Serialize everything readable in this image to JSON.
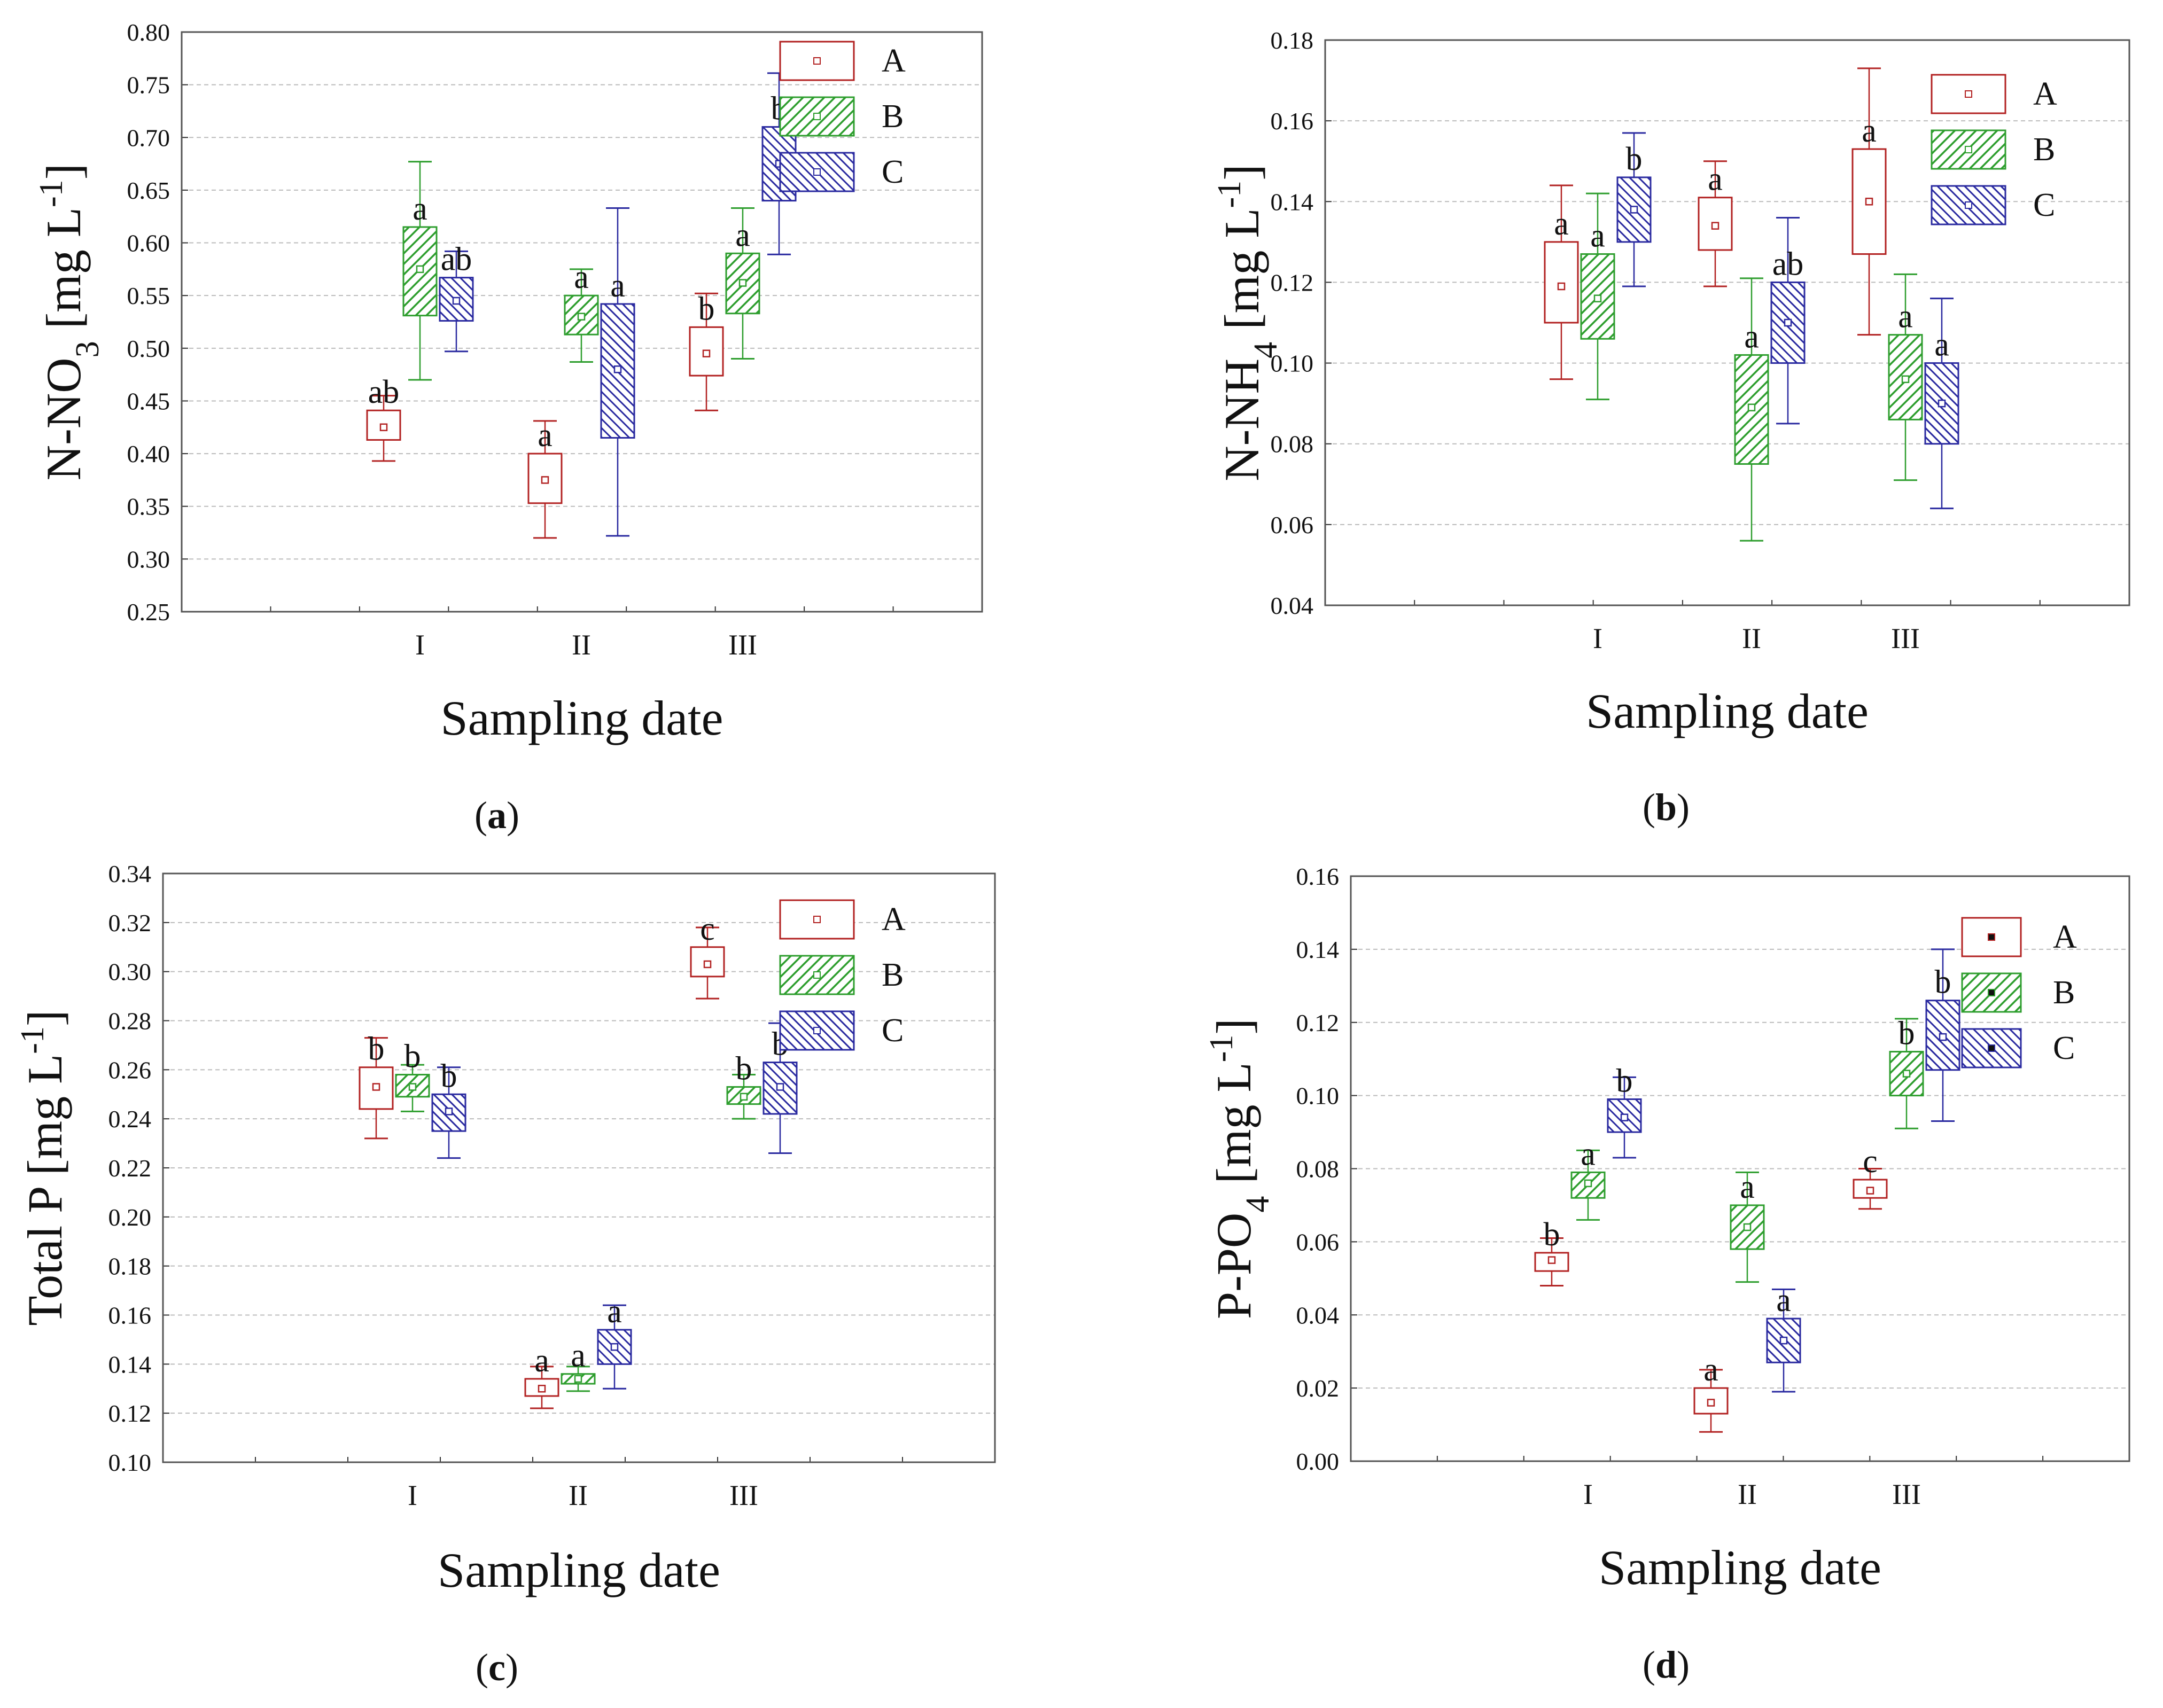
{
  "colors": {
    "A": "#b22222",
    "B": "#2e9e2e",
    "C": "#2a2aa0",
    "grid": "#bbbbbb",
    "frame": "#555555"
  },
  "series_names": [
    "A",
    "B",
    "C"
  ],
  "chart_data": [
    {
      "type": "box",
      "panel": "a",
      "title": "",
      "xlabel": "Sampling date",
      "ylabel_main": "N-NO",
      "ylabel_sub": "3",
      "ylabel_unit": " [mg L",
      "ylabel_exp": "-1",
      "ylabel_close": "]",
      "yticks": [
        "0.25",
        "0.30",
        "0.35",
        "0.40",
        "0.45",
        "0.50",
        "0.55",
        "0.60",
        "0.65",
        "0.70",
        "0.75",
        "0.80"
      ],
      "ylim": [
        0.25,
        0.8
      ],
      "categories": [
        "I",
        "II",
        "III"
      ],
      "legend": [
        "A",
        "B",
        "C"
      ],
      "legend_position": "top-right",
      "series": [
        {
          "name": "A",
          "boxes": [
            {
              "cat": "I",
              "min": 0.393,
              "q1": 0.413,
              "median": 0.425,
              "q3": 0.441,
              "max": 0.455,
              "label": "ab"
            },
            {
              "cat": "II",
              "min": 0.32,
              "q1": 0.353,
              "median": 0.375,
              "q3": 0.4,
              "max": 0.431,
              "label": "a"
            },
            {
              "cat": "III",
              "min": 0.441,
              "q1": 0.474,
              "median": 0.495,
              "q3": 0.52,
              "max": 0.552,
              "label": "b"
            }
          ]
        },
        {
          "name": "B",
          "boxes": [
            {
              "cat": "I",
              "min": 0.47,
              "q1": 0.531,
              "median": 0.575,
              "q3": 0.615,
              "max": 0.677,
              "label": "a"
            },
            {
              "cat": "II",
              "min": 0.487,
              "q1": 0.513,
              "median": 0.53,
              "q3": 0.55,
              "max": 0.575,
              "label": "a"
            },
            {
              "cat": "III",
              "min": 0.49,
              "q1": 0.533,
              "median": 0.562,
              "q3": 0.59,
              "max": 0.633,
              "label": "a"
            }
          ]
        },
        {
          "name": "C",
          "boxes": [
            {
              "cat": "I",
              "min": 0.497,
              "q1": 0.526,
              "median": 0.545,
              "q3": 0.567,
              "max": 0.592,
              "label": "ab"
            },
            {
              "cat": "II",
              "min": 0.322,
              "q1": 0.415,
              "median": 0.48,
              "q3": 0.542,
              "max": 0.633,
              "label": "a"
            },
            {
              "cat": "III",
              "min": 0.589,
              "q1": 0.64,
              "median": 0.675,
              "q3": 0.71,
              "max": 0.761,
              "label": "b"
            }
          ]
        }
      ],
      "panel_label": "a"
    },
    {
      "type": "box",
      "panel": "b",
      "title": "",
      "xlabel": "Sampling date",
      "ylabel_main": "N-NH",
      "ylabel_sub": "4",
      "ylabel_unit": " [mg L",
      "ylabel_exp": "-1",
      "ylabel_close": "]",
      "yticks": [
        "0.04",
        "0.06",
        "0.08",
        "0.10",
        "0.12",
        "0.14",
        "0.16",
        "0.18"
      ],
      "ylim": [
        0.04,
        0.18
      ],
      "categories": [
        "I",
        "II",
        "III"
      ],
      "legend": [
        "A",
        "B",
        "C"
      ],
      "legend_position": "top-right",
      "series": [
        {
          "name": "A",
          "boxes": [
            {
              "cat": "I",
              "min": 0.096,
              "q1": 0.11,
              "median": 0.119,
              "q3": 0.13,
              "max": 0.144,
              "label": "a"
            },
            {
              "cat": "II",
              "min": 0.119,
              "q1": 0.128,
              "median": 0.134,
              "q3": 0.141,
              "max": 0.15,
              "label": "a"
            },
            {
              "cat": "III",
              "min": 0.107,
              "q1": 0.127,
              "median": 0.14,
              "q3": 0.153,
              "max": 0.173,
              "label": "a"
            }
          ]
        },
        {
          "name": "B",
          "boxes": [
            {
              "cat": "I",
              "min": 0.091,
              "q1": 0.106,
              "median": 0.116,
              "q3": 0.127,
              "max": 0.142,
              "label": "a"
            },
            {
              "cat": "II",
              "min": 0.056,
              "q1": 0.075,
              "median": 0.089,
              "q3": 0.102,
              "max": 0.121,
              "label": "a"
            },
            {
              "cat": "III",
              "min": 0.071,
              "q1": 0.086,
              "median": 0.096,
              "q3": 0.107,
              "max": 0.122,
              "label": "a"
            }
          ]
        },
        {
          "name": "C",
          "boxes": [
            {
              "cat": "I",
              "min": 0.119,
              "q1": 0.13,
              "median": 0.138,
              "q3": 0.146,
              "max": 0.157,
              "label": "b"
            },
            {
              "cat": "II",
              "min": 0.085,
              "q1": 0.1,
              "median": 0.11,
              "q3": 0.12,
              "max": 0.136,
              "label": "ab"
            },
            {
              "cat": "III",
              "min": 0.064,
              "q1": 0.08,
              "median": 0.09,
              "q3": 0.1,
              "max": 0.116,
              "label": "a"
            }
          ]
        }
      ],
      "panel_label": "b"
    },
    {
      "type": "box",
      "panel": "c",
      "title": "",
      "xlabel": "Sampling date",
      "ylabel_main": "Total P",
      "ylabel_sub": "",
      "ylabel_unit": " [mg L",
      "ylabel_exp": "-1",
      "ylabel_close": "]",
      "yticks": [
        "0.10",
        "0.12",
        "0.14",
        "0.16",
        "0.18",
        "0.20",
        "0.22",
        "0.24",
        "0.26",
        "0.28",
        "0.30",
        "0.32",
        "0.34"
      ],
      "ylim": [
        0.1,
        0.34
      ],
      "categories": [
        "I",
        "II",
        "III"
      ],
      "legend": [
        "A",
        "B",
        "C"
      ],
      "legend_position": "top-right",
      "series": [
        {
          "name": "A",
          "boxes": [
            {
              "cat": "I",
              "min": 0.232,
              "q1": 0.244,
              "median": 0.253,
              "q3": 0.261,
              "max": 0.273,
              "label": "b"
            },
            {
              "cat": "II",
              "min": 0.122,
              "q1": 0.127,
              "median": 0.13,
              "q3": 0.134,
              "max": 0.139,
              "label": "a"
            },
            {
              "cat": "III",
              "min": 0.289,
              "q1": 0.298,
              "median": 0.303,
              "q3": 0.31,
              "max": 0.318,
              "label": "c"
            }
          ]
        },
        {
          "name": "B",
          "boxes": [
            {
              "cat": "I",
              "min": 0.243,
              "q1": 0.249,
              "median": 0.253,
              "q3": 0.258,
              "max": 0.262,
              "label": "b"
            },
            {
              "cat": "II",
              "min": 0.129,
              "q1": 0.132,
              "median": 0.134,
              "q3": 0.136,
              "max": 0.139,
              "label": "a"
            },
            {
              "cat": "III",
              "min": 0.24,
              "q1": 0.246,
              "median": 0.249,
              "q3": 0.253,
              "max": 0.258,
              "label": "b"
            }
          ]
        },
        {
          "name": "C",
          "boxes": [
            {
              "cat": "I",
              "min": 0.224,
              "q1": 0.235,
              "median": 0.243,
              "q3": 0.25,
              "max": 0.261,
              "label": "b"
            },
            {
              "cat": "II",
              "min": 0.13,
              "q1": 0.14,
              "median": 0.147,
              "q3": 0.154,
              "max": 0.164,
              "label": "a"
            },
            {
              "cat": "III",
              "min": 0.226,
              "q1": 0.242,
              "median": 0.253,
              "q3": 0.263,
              "max": 0.279,
              "label": "b"
            }
          ]
        }
      ],
      "panel_label": "c"
    },
    {
      "type": "box",
      "panel": "d",
      "title": "",
      "xlabel": "Sampling date",
      "ylabel_main": "P-PO",
      "ylabel_sub": "4",
      "ylabel_unit": " [mg L",
      "ylabel_exp": "-1",
      "ylabel_close": "]",
      "yticks": [
        "0.00",
        "0.02",
        "0.04",
        "0.06",
        "0.08",
        "0.10",
        "0.12",
        "0.14",
        "0.16"
      ],
      "ylim": [
        0.0,
        0.16
      ],
      "categories": [
        "I",
        "II",
        "III"
      ],
      "legend": [
        "A",
        "B",
        "C"
      ],
      "legend_position": "top-right",
      "series": [
        {
          "name": "A",
          "boxes": [
            {
              "cat": "I",
              "min": 0.048,
              "q1": 0.052,
              "median": 0.055,
              "q3": 0.057,
              "max": 0.061,
              "label": "b"
            },
            {
              "cat": "II",
              "min": 0.008,
              "q1": 0.013,
              "median": 0.016,
              "q3": 0.02,
              "max": 0.025,
              "label": "a"
            },
            {
              "cat": "III",
              "min": 0.069,
              "q1": 0.072,
              "median": 0.074,
              "q3": 0.077,
              "max": 0.08,
              "label": "c"
            }
          ]
        },
        {
          "name": "B",
          "boxes": [
            {
              "cat": "I",
              "min": 0.066,
              "q1": 0.072,
              "median": 0.076,
              "q3": 0.079,
              "max": 0.085,
              "label": "a"
            },
            {
              "cat": "II",
              "min": 0.049,
              "q1": 0.058,
              "median": 0.064,
              "q3": 0.07,
              "max": 0.079,
              "label": "a"
            },
            {
              "cat": "III",
              "min": 0.091,
              "q1": 0.1,
              "median": 0.106,
              "q3": 0.112,
              "max": 0.121,
              "label": "b"
            }
          ]
        },
        {
          "name": "C",
          "boxes": [
            {
              "cat": "I",
              "min": 0.083,
              "q1": 0.09,
              "median": 0.094,
              "q3": 0.099,
              "max": 0.105,
              "label": "b"
            },
            {
              "cat": "II",
              "min": 0.019,
              "q1": 0.027,
              "median": 0.033,
              "q3": 0.039,
              "max": 0.047,
              "label": "a"
            },
            {
              "cat": "III",
              "min": 0.093,
              "q1": 0.107,
              "median": 0.116,
              "q3": 0.126,
              "max": 0.14,
              "label": "b"
            }
          ]
        }
      ],
      "panel_label": "d"
    }
  ]
}
